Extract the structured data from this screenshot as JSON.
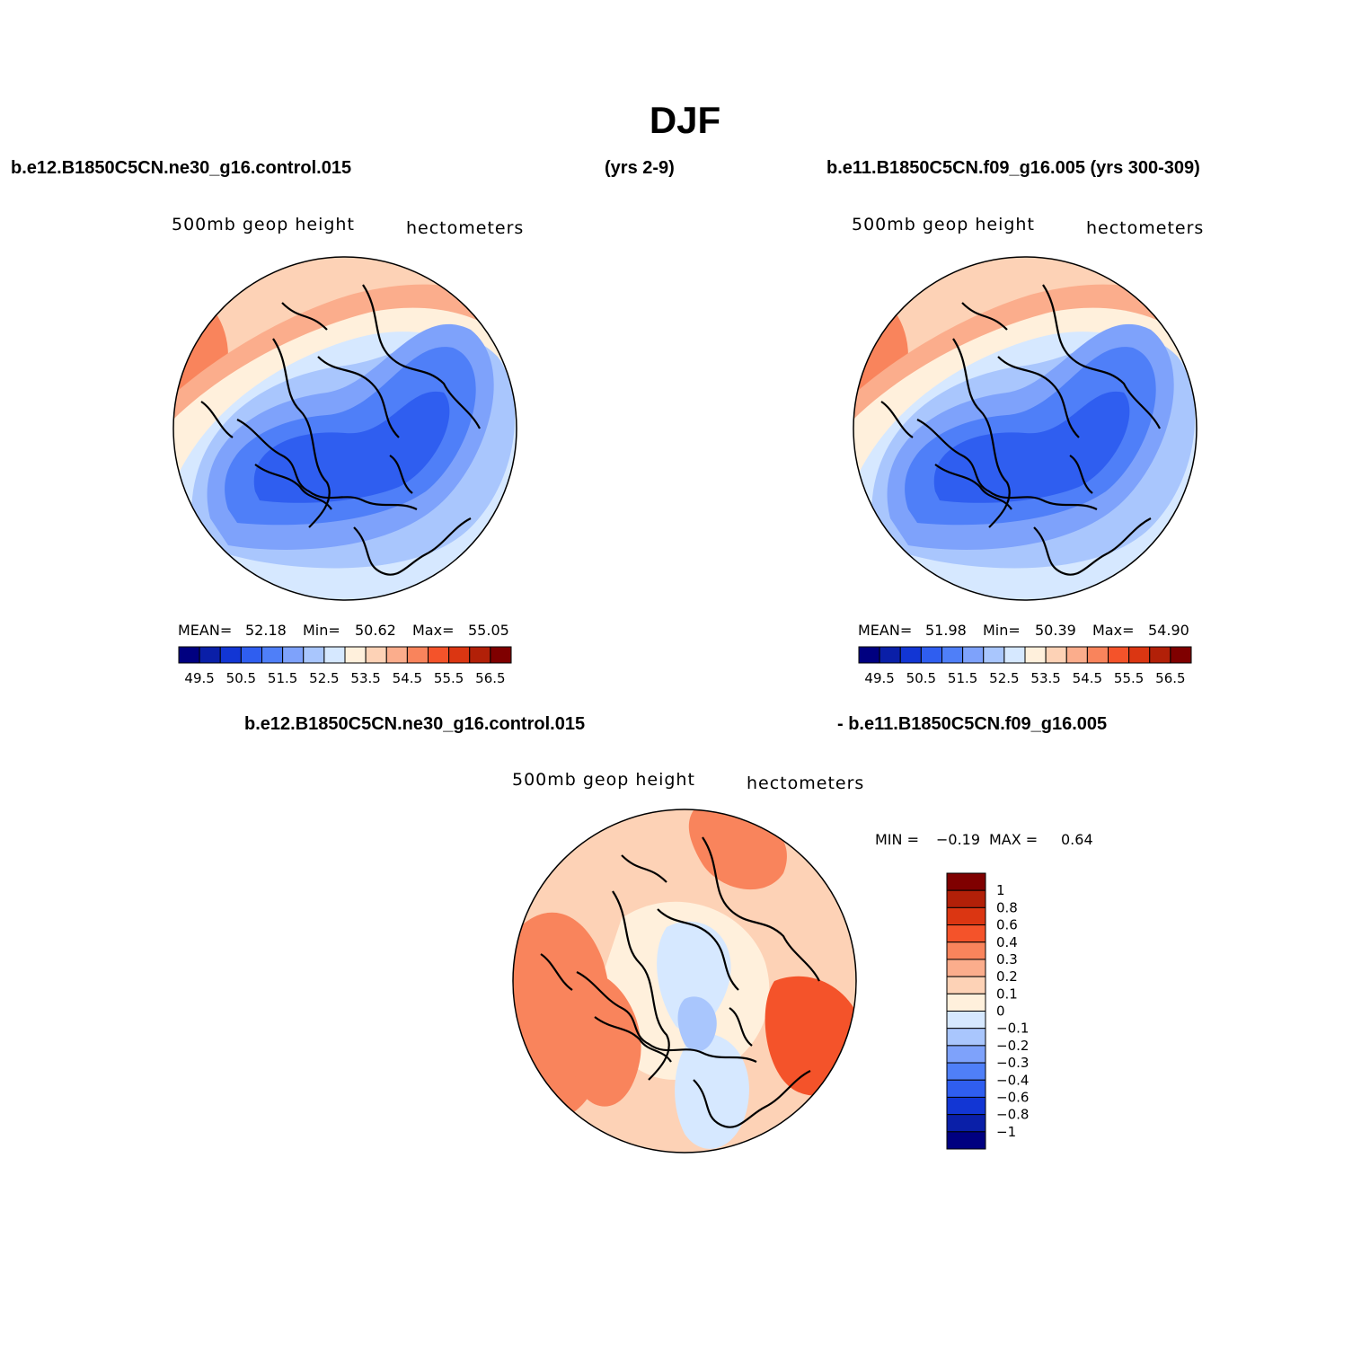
{
  "figure": {
    "title": "DJF",
    "top_left_header": "b.e12.B1850C5CN.ne30_g16.control.015",
    "top_middle_header": "(yrs 2-9)",
    "top_right_header": "b.e11.B1850C5CN.f09_g16.005 (yrs 300-309)",
    "diff_header_left": "b.e12.B1850C5CN.ne30_g16.control.015",
    "diff_header_right": "- b.e11.B1850C5CN.f09_g16.005"
  },
  "panels": [
    {
      "id": "case1",
      "variable": "500mb geop height",
      "units": "hectometers",
      "stats_labels": {
        "mean": "MEAN=",
        "min": "Min=",
        "max": "Max="
      },
      "stats": {
        "mean": "52.18",
        "min": "50.62",
        "max": "55.05"
      }
    },
    {
      "id": "case2",
      "variable": "500mb geop height",
      "units": "hectometers",
      "stats_labels": {
        "mean": "MEAN=",
        "min": "Min=",
        "max": "Max="
      },
      "stats": {
        "mean": "51.98",
        "min": "50.39",
        "max": "54.90"
      }
    },
    {
      "id": "difference",
      "variable": "500mb geop height",
      "units": "hectometers",
      "min_label": "MIN =",
      "min_value": "−0.19",
      "max_label": "MAX =",
      "max_value": "0.64"
    }
  ],
  "colorbar_abs": {
    "colors": [
      "#000080",
      "#0a1fa8",
      "#1236d4",
      "#2f5ef0",
      "#4f7ff8",
      "#7ea2fb",
      "#a9c6fd",
      "#d6e8ff",
      "#fff0dc",
      "#fdd2b6",
      "#fbad8c",
      "#f9845c",
      "#f4532a",
      "#db3612",
      "#b22008",
      "#7f0000"
    ],
    "labels": [
      "49.5",
      "50.5",
      "51.5",
      "52.5",
      "53.5",
      "54.5",
      "55.5",
      "56.5"
    ]
  },
  "colorbar_diff": {
    "colors": [
      "#7f0000",
      "#b22008",
      "#db3612",
      "#f4532a",
      "#f9845c",
      "#fbad8c",
      "#fdd2b6",
      "#fff0dc",
      "#d6e8ff",
      "#a9c6fd",
      "#7ea2fb",
      "#4f7ff8",
      "#2f5ef0",
      "#1236d4",
      "#0a1fa8",
      "#000080"
    ],
    "labels": [
      "1",
      "0.8",
      "0.6",
      "0.4",
      "0.3",
      "0.2",
      "0.1",
      "0",
      "−0.1",
      "−0.2",
      "−0.3",
      "−0.4",
      "−0.6",
      "−0.8",
      "−1"
    ]
  },
  "map_fields": {
    "case1": {
      "projection": "north polar stereographic",
      "background": "#fdd2b6",
      "contours": [
        {
          "level": 54.5,
          "color": "#fbad8c"
        },
        {
          "level": 53.5,
          "color": "#fff0dc"
        },
        {
          "level": 53.0,
          "color": "#d6e8ff"
        },
        {
          "level": 52.5,
          "color": "#a9c6fd"
        },
        {
          "level": 52.0,
          "color": "#7ea2fb"
        },
        {
          "level": 51.5,
          "color": "#4f7ff8"
        },
        {
          "level": 51.0,
          "color": "#2f5ef0"
        }
      ],
      "highs": [
        {
          "region": "south",
          "color": "#f4532a"
        },
        {
          "region": "west",
          "color": "#f9845c"
        }
      ]
    },
    "case2": {
      "projection": "north polar stereographic",
      "background": "#fdd2b6",
      "contours": [
        {
          "level": 54.5,
          "color": "#fbad8c"
        },
        {
          "level": 53.5,
          "color": "#fff0dc"
        },
        {
          "level": 53.0,
          "color": "#d6e8ff"
        },
        {
          "level": 52.5,
          "color": "#a9c6fd"
        },
        {
          "level": 52.0,
          "color": "#7ea2fb"
        },
        {
          "level": 51.5,
          "color": "#4f7ff8"
        },
        {
          "level": 51.0,
          "color": "#2f5ef0"
        }
      ],
      "highs": [
        {
          "region": "south",
          "color": "#f4532a"
        },
        {
          "region": "west",
          "color": "#f9845c"
        }
      ]
    },
    "difference": {
      "projection": "north polar stereographic",
      "background": "#fdd2b6",
      "regions": [
        {
          "name": "pole-near-zero",
          "color": "#fff0dc"
        },
        {
          "name": "siberia-negative",
          "color": "#d6e8ff"
        },
        {
          "name": "europe-negative",
          "color": "#d6e8ff"
        },
        {
          "name": "arctic-negative-core",
          "color": "#a9c6fd"
        },
        {
          "name": "pacific-positive",
          "color": "#f9845c"
        },
        {
          "name": "canada-positive",
          "color": "#f9845c"
        },
        {
          "name": "atlantic-positive",
          "color": "#f4532a"
        },
        {
          "name": "north-positive",
          "color": "#f9845c"
        }
      ]
    }
  }
}
